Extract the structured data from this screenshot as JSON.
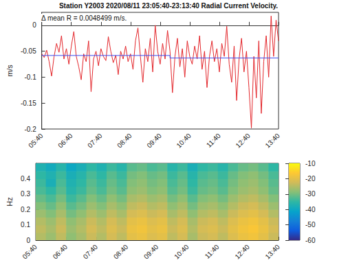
{
  "chart_data": [
    {
      "type": "line",
      "title": "Station Y2003 2020/08/11 23:05:40-23:13:40 Radial Current Velocity.",
      "annotation": "Δ mean R = 0.0048499 m/s.",
      "y_label": "m/s",
      "grid": false,
      "x": [
        340,
        345,
        350,
        355,
        360,
        365,
        370,
        375,
        380,
        385,
        390,
        395,
        400,
        405,
        410,
        415,
        420,
        425,
        430,
        435,
        440,
        445,
        450,
        455,
        460,
        465,
        470,
        475,
        480,
        485,
        490,
        495,
        500,
        505,
        510,
        515,
        520,
        525,
        530,
        535,
        540,
        545,
        550,
        555,
        560,
        565,
        570,
        575,
        580,
        585,
        590,
        595,
        600,
        605,
        610,
        615,
        620,
        625,
        630,
        635,
        640,
        645,
        650,
        655,
        660,
        665,
        670,
        675,
        680,
        685,
        690,
        695,
        700,
        705,
        710,
        715,
        720,
        725,
        730,
        735,
        740,
        745,
        750,
        755,
        760,
        765,
        770,
        775,
        780,
        785,
        790,
        795,
        800,
        805,
        810,
        815,
        820
      ],
      "series": [
        {
          "color": "#e3262b",
          "values": [
            -0.055,
            -0.062,
            -0.048,
            -0.07,
            -0.098,
            -0.06,
            -0.035,
            -0.052,
            -0.02,
            -0.065,
            -0.045,
            -0.075,
            -0.04,
            -0.012,
            -0.06,
            -0.08,
            -0.105,
            -0.055,
            -0.07,
            -0.03,
            -0.128,
            -0.065,
            -0.05,
            -0.078,
            -0.045,
            -0.06,
            -0.068,
            -0.022,
            -0.05,
            -0.072,
            -0.058,
            -0.095,
            -0.05,
            -0.065,
            -0.04,
            -0.07,
            -0.055,
            -0.085,
            -0.03,
            -0.005,
            -0.06,
            -0.11,
            -0.045,
            -0.07,
            -0.025,
            -0.09,
            0.0,
            -0.05,
            -0.075,
            -0.035,
            -0.065,
            -0.01,
            -0.05,
            -0.13,
            -0.06,
            -0.025,
            -0.08,
            -0.045,
            -0.1,
            -0.03,
            -0.06,
            -0.075,
            -0.04,
            -0.065,
            -0.02,
            -0.085,
            -0.05,
            -0.12,
            -0.06,
            -0.03,
            -0.07,
            -0.045,
            -0.09,
            -0.035,
            -0.06,
            -0.002,
            -0.075,
            -0.11,
            -0.04,
            -0.145,
            -0.065,
            -0.025,
            -0.09,
            -0.05,
            -0.12,
            -0.198,
            -0.06,
            -0.14,
            -0.03,
            -0.17,
            -0.07,
            -0.02,
            -0.1,
            0.018,
            -0.06,
            0.01,
            -0.03
          ]
        },
        {
          "color": "#3c4cf0",
          "x": [
            340,
            600,
            600,
            820
          ],
          "values": [
            -0.0582,
            -0.0582,
            -0.063,
            -0.063
          ]
        }
      ],
      "xlim": [
        340,
        820
      ],
      "xticks": [
        {
          "value": 340,
          "label": "05:40"
        },
        {
          "value": 400,
          "label": "06:40"
        },
        {
          "value": 460,
          "label": "07:40"
        },
        {
          "value": 520,
          "label": "08:40"
        },
        {
          "value": 580,
          "label": "09:40"
        },
        {
          "value": 640,
          "label": "10:40"
        },
        {
          "value": 700,
          "label": "11:40"
        },
        {
          "value": 760,
          "label": "12:40"
        },
        {
          "value": 820,
          "label": "13:40"
        }
      ],
      "ylim": [
        -0.2,
        0.025
      ],
      "yticks": [
        -0.2,
        -0.15,
        -0.1,
        -0.05,
        0
      ]
    },
    {
      "type": "heatmap",
      "y_label": "Hz",
      "x_edges": [
        340,
        360,
        380,
        400,
        420,
        440,
        460,
        480,
        500,
        520,
        540,
        560,
        580,
        600,
        620,
        640,
        660,
        680,
        700,
        720,
        740,
        760,
        780,
        800,
        820
      ],
      "y_edges": [
        0,
        0.05,
        0.1,
        0.15,
        0.2,
        0.25,
        0.3,
        0.35,
        0.4,
        0.45,
        0.5
      ],
      "cells": [
        [
          -25,
          -27,
          -24,
          -28,
          -26,
          -23,
          -25,
          -22,
          -24,
          -20,
          -19,
          -21,
          -20,
          -24,
          -22,
          -26,
          -23,
          -22,
          -24,
          -21,
          -19,
          -18,
          -20,
          -23
        ],
        [
          -24,
          -26,
          -23,
          -27,
          -25,
          -22,
          -24,
          -21,
          -23,
          -19,
          -18,
          -20,
          -19,
          -23,
          -21,
          -25,
          -22,
          -21,
          -23,
          -20,
          -18,
          -17,
          -19,
          -22
        ],
        [
          -25,
          -27,
          -24,
          -28,
          -26,
          -23,
          -25,
          -22,
          -24,
          -20,
          -19,
          -21,
          -20,
          -24,
          -22,
          -26,
          -23,
          -22,
          -24,
          -21,
          -19,
          -18,
          -20,
          -23
        ],
        [
          -27,
          -29,
          -26,
          -30,
          -28,
          -25,
          -27,
          -24,
          -26,
          -22,
          -21,
          -23,
          -22,
          -26,
          -24,
          -28,
          -25,
          -24,
          -26,
          -23,
          -21,
          -20,
          -22,
          -25
        ],
        [
          -29,
          -31,
          -28,
          -32,
          -30,
          -27,
          -29,
          -26,
          -28,
          -24,
          -23,
          -25,
          -24,
          -28,
          -26,
          -30,
          -27,
          -26,
          -28,
          -25,
          -23,
          -22,
          -24,
          -27
        ],
        [
          -31,
          -33,
          -30,
          -34,
          -32,
          -29,
          -31,
          -28,
          -30,
          -26,
          -25,
          -27,
          -26,
          -30,
          -28,
          -32,
          -29,
          -28,
          -30,
          -27,
          -25,
          -24,
          -26,
          -29
        ],
        [
          -33,
          -35,
          -32,
          -36,
          -34,
          -31,
          -33,
          -30,
          -32,
          -28,
          -27,
          -29,
          -28,
          -32,
          -30,
          -34,
          -31,
          -30,
          -32,
          -29,
          -27,
          -26,
          -28,
          -31
        ],
        [
          -34,
          -38,
          -33,
          -37,
          -35,
          -32,
          -34,
          -31,
          -33,
          -29,
          -28,
          -30,
          -29,
          -33,
          -31,
          -35,
          -32,
          -31,
          -33,
          -30,
          -28,
          -27,
          -29,
          -32
        ],
        [
          -35,
          -37,
          -34,
          -38,
          -36,
          -33,
          -35,
          -32,
          -34,
          -30,
          -29,
          -31,
          -30,
          -34,
          -32,
          -36,
          -33,
          -32,
          -34,
          -31,
          -29,
          -28,
          -30,
          -33
        ],
        [
          -37,
          -39,
          -36,
          -40,
          -38,
          -35,
          -37,
          -34,
          -36,
          -32,
          -31,
          -33,
          -32,
          -36,
          -34,
          -38,
          -35,
          -34,
          -36,
          -33,
          -31,
          -30,
          -32,
          -35
        ]
      ],
      "xlim": [
        340,
        820
      ],
      "xticks": [
        {
          "value": 340,
          "label": "05:40"
        },
        {
          "value": 400,
          "label": "06:40"
        },
        {
          "value": 460,
          "label": "07:40"
        },
        {
          "value": 520,
          "label": "08:40"
        },
        {
          "value": 580,
          "label": "09:40"
        },
        {
          "value": 640,
          "label": "10:40"
        },
        {
          "value": 700,
          "label": "11:40"
        },
        {
          "value": 760,
          "label": "12:40"
        },
        {
          "value": 820,
          "label": "13:40"
        }
      ],
      "ylim": [
        0,
        0.5
      ],
      "yticks": [
        0,
        0.1,
        0.2,
        0.3,
        0.4
      ],
      "colorbar": {
        "range": [
          -60,
          -10
        ],
        "ticks": [
          -10,
          -20,
          -30,
          -40,
          -50,
          -60
        ]
      }
    }
  ]
}
